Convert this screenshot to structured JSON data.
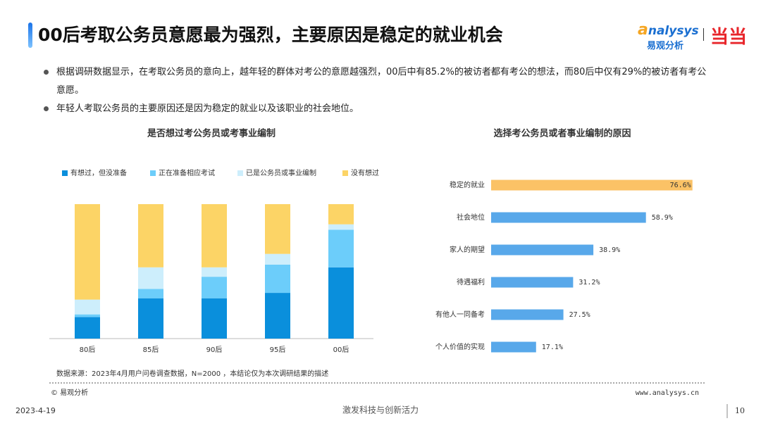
{
  "header": {
    "title": "00后考取公务员意愿最为强烈，主要原因是稳定的就业机会",
    "logo_en": "nalysys",
    "logo_cn": "易观分析",
    "logo_partner": "当当"
  },
  "bullets": [
    "根据调研数据显示，在考取公务员的意向上，越年轻的群体对考公的意愿越强烈，00后中有85.2%的被访者都有考公的想法，而80后中仅有29%的被访者有考公意愿。",
    "年轻人考取公务员的主要原因还是因为稳定的就业以及该职业的社会地位。"
  ],
  "chart_data": [
    {
      "type": "stacked_bar",
      "title": "是否想过考公务员或考事业编制",
      "categories": [
        "80后",
        "85后",
        "90后",
        "95后",
        "00后"
      ],
      "ylim": [
        0,
        100
      ],
      "series": [
        {
          "name": "有想过，但没准备",
          "color": "#0a8fdc",
          "values": [
            16,
            30,
            30,
            34,
            53
          ]
        },
        {
          "name": "正在准备相应考试",
          "color": "#6ccdfa",
          "values": [
            2,
            7,
            16,
            21,
            28
          ]
        },
        {
          "name": "已是公务员或事业编制",
          "color": "#cdeefc",
          "values": [
            11,
            16,
            7,
            8,
            4
          ]
        },
        {
          "name": "没有想过",
          "color": "#fcd466",
          "values": [
            71,
            47,
            47,
            37,
            15
          ]
        }
      ]
    },
    {
      "type": "barh",
      "title": "选择考公务员或者事业编制的原因",
      "categories": [
        "稳定的就业",
        "社会地位",
        "家人的期望",
        "待遇福利",
        "有他人一同备考",
        "个人价值的实现"
      ],
      "values": [
        76.6,
        58.9,
        38.9,
        31.2,
        27.5,
        17.1
      ],
      "value_labels": [
        "76.6%",
        "58.9%",
        "38.9%",
        "31.2%",
        "27.5%",
        "17.1%"
      ],
      "colors": [
        "#fbc266",
        "#58a8ea",
        "#58a8ea",
        "#58a8ea",
        "#58a8ea",
        "#58a8ea"
      ],
      "xlim": [
        0,
        100
      ]
    }
  ],
  "footer": {
    "source": "数据来源：2023年4月用户问卷调查数据，N=2000 ，本结论仅为本次调研结果的描述",
    "copyright": "© 易观分析",
    "website": "www.analysys.cn",
    "date": "2023-4-19",
    "slogan": "激发科技与创新活力",
    "page": "10"
  }
}
